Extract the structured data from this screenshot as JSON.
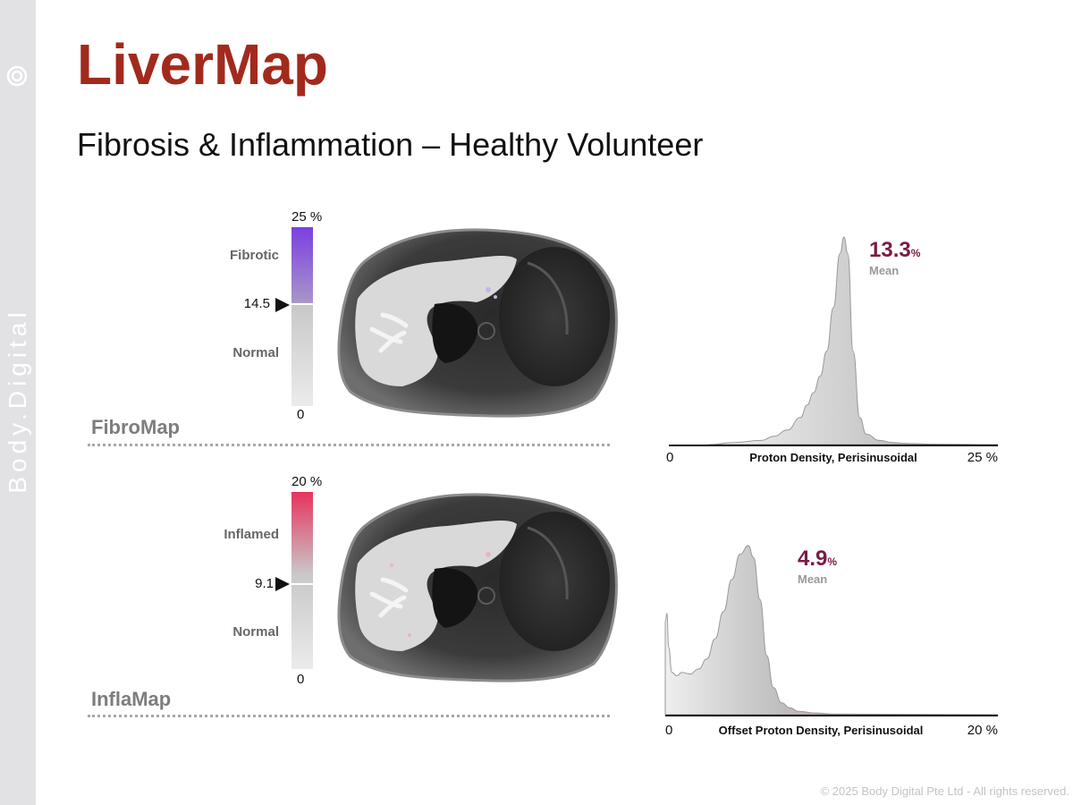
{
  "brand": "Body.Digital",
  "title": "LiverMap",
  "subtitle": "Fibrosis & Inflammation – Healthy Volunteer",
  "footer": "© 2025 Body Digital Pte Ltd - All rights reserved.",
  "colors": {
    "title": "#a22a1d",
    "mean_value": "#7a1b45",
    "fibro_scale_top": "#7b3fe0",
    "infla_scale_top": "#e6335c",
    "sidebar": "#e2e2e4"
  },
  "fibromap": {
    "label": "FibroMap",
    "scale_max": "25 %",
    "scale_min": "0",
    "threshold": "14.5",
    "upper_label": "Fibrotic",
    "lower_label": "Normal",
    "threshold_fraction": 0.42
  },
  "inflamap": {
    "label": "InflaMap",
    "scale_max": "20 %",
    "scale_min": "0",
    "threshold": "9.1",
    "upper_label": "Inflamed",
    "lower_label": "Normal",
    "threshold_fraction": 0.455
  },
  "chart_data": [
    {
      "type": "area",
      "title": "FibroMap histogram",
      "xlabel": "Proton Density, Perisinusoidal",
      "x_min_label": "0",
      "x_max_label": "25 %",
      "xlim": [
        0,
        25
      ],
      "mean_value": "13.3",
      "mean_unit": "%",
      "mean_label": "Mean",
      "x": [
        3,
        5,
        7,
        8,
        9,
        10,
        10.5,
        11,
        11.5,
        12,
        12.5,
        13,
        13.3,
        13.6,
        14,
        14.5,
        15,
        16,
        17,
        18,
        20,
        25
      ],
      "y": [
        0,
        0.01,
        0.02,
        0.04,
        0.07,
        0.13,
        0.19,
        0.25,
        0.33,
        0.45,
        0.66,
        0.92,
        1.0,
        0.92,
        0.45,
        0.13,
        0.05,
        0.02,
        0.01,
        0.005,
        0.002,
        0
      ]
    },
    {
      "type": "area",
      "title": "InflaMap histogram",
      "xlabel": "Offset Proton Density, Perisinusoidal",
      "x_min_label": "0",
      "x_max_label": "20 %",
      "xlim": [
        0,
        20
      ],
      "mean_value": "4.9",
      "mean_unit": "%",
      "mean_label": "Mean",
      "x": [
        0,
        0.1,
        0.2,
        0.4,
        0.7,
        1,
        1.5,
        2,
        2.5,
        3,
        3.5,
        4,
        4.5,
        5,
        5.3,
        5.7,
        6.1,
        6.5,
        7,
        7.5,
        8,
        9,
        10,
        20
      ],
      "y": [
        0.55,
        0.6,
        0.4,
        0.25,
        0.23,
        0.25,
        0.24,
        0.27,
        0.33,
        0.45,
        0.61,
        0.8,
        0.95,
        1.0,
        0.93,
        0.68,
        0.35,
        0.16,
        0.07,
        0.04,
        0.02,
        0.01,
        0.004,
        0
      ]
    }
  ]
}
